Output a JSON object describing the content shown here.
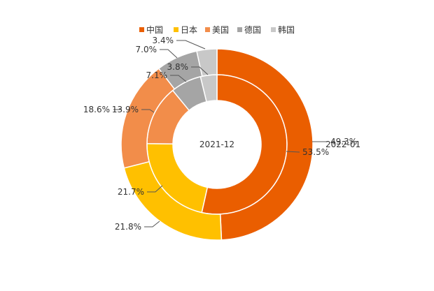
{
  "chart_data": {
    "type": "pie",
    "variant": "nested-donut",
    "legend_position": "top",
    "categories": [
      "中国",
      "日本",
      "美国",
      "德国",
      "韩国"
    ],
    "colors": [
      "#EA5E00",
      "#FFC000",
      "#F28D4A",
      "#A5A5A5",
      "#C8C8C8"
    ],
    "series": [
      {
        "name": "2021-12",
        "ring": "inner",
        "values": [
          53.5,
          21.7,
          13.9,
          7.1,
          3.8
        ],
        "labels": [
          "53.5%",
          "21.7%",
          "13.9%",
          "7.1%",
          "3.8%"
        ]
      },
      {
        "name": "2022-01",
        "ring": "outer",
        "values": [
          49.3,
          21.8,
          18.6,
          7.0,
          3.4
        ],
        "labels": [
          "49.3%",
          "21.8%",
          "18.6%",
          "7.0%",
          "3.4%"
        ]
      }
    ]
  }
}
